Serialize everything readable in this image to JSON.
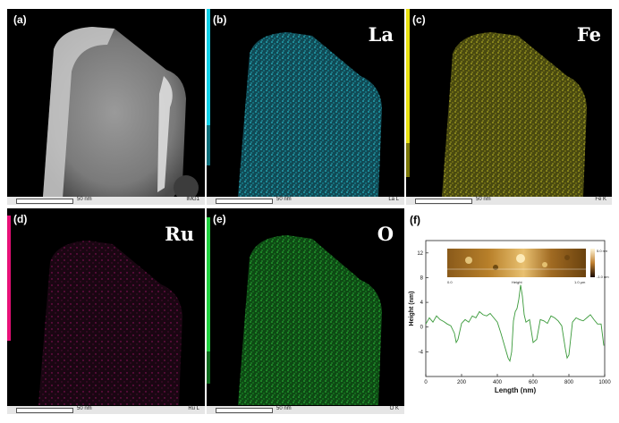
{
  "panels": {
    "a": {
      "label": "(a)",
      "scale": "50 nm",
      "tag": "IMG1"
    },
    "b": {
      "label": "(b)",
      "element": "La",
      "scale": "50 nm",
      "tag": "La L",
      "color": "#19c8d8",
      "strip_color": "#10d0e8"
    },
    "c": {
      "label": "(c)",
      "element": "Fe",
      "scale": "50 nm",
      "tag": "Fe K",
      "color": "#b8b422",
      "strip_color": "#e8e010"
    },
    "d": {
      "label": "(d)",
      "element": "Ru",
      "scale": "50 nm",
      "tag": "Ru L",
      "color": "#a01268",
      "strip_color": "#e81078"
    },
    "e": {
      "label": "(e)",
      "element": "O",
      "scale": "50 nm",
      "tag": "O K",
      "color": "#22b030",
      "strip_color": "#20d040"
    },
    "f": {
      "label": "(f)",
      "inset_left": "0.0",
      "inset_center": "Height",
      "inset_right": "1.0 µm",
      "inset_scale_top": "5.0 nm",
      "inset_scale_bottom": "-1.0 nm"
    }
  },
  "chart_data": {
    "type": "line",
    "xlabel": "Length (nm)",
    "ylabel": "Height (nm)",
    "xlim": [
      0,
      1000
    ],
    "ylim": [
      -8,
      14
    ],
    "xticks": [
      0,
      200,
      400,
      600,
      800,
      1000
    ],
    "yticks": [
      -4,
      0,
      4,
      8,
      12
    ],
    "line_color": "#3a9a3a",
    "series": [
      {
        "x": [
          0,
          20,
          40,
          60,
          80,
          100,
          120,
          140,
          160,
          170,
          180,
          200,
          220,
          240,
          260,
          280,
          300,
          320,
          340,
          360,
          380,
          400,
          420,
          440,
          460,
          470,
          480,
          490,
          500,
          510,
          520,
          530,
          540,
          550,
          560,
          580,
          600,
          620,
          640,
          660,
          680,
          700,
          720,
          740,
          760,
          780,
          790,
          800,
          820,
          840,
          860,
          880,
          900,
          920,
          940,
          960,
          980,
          995
        ],
        "y": [
          0.5,
          1.5,
          0.8,
          1.8,
          1.2,
          0.9,
          0.5,
          0.2,
          -1.0,
          -2.5,
          -2.0,
          0.6,
          1.2,
          0.8,
          1.8,
          1.5,
          2.5,
          2.0,
          1.8,
          2.2,
          1.5,
          0.8,
          -1.0,
          -3.0,
          -5.0,
          -5.5,
          -4.0,
          1.0,
          2.5,
          3.0,
          4.5,
          6.8,
          5.0,
          2.0,
          0.8,
          1.2,
          -2.5,
          -2.0,
          1.2,
          1.0,
          0.6,
          1.8,
          1.5,
          1.0,
          0.2,
          -3.5,
          -5.0,
          -4.5,
          0.8,
          1.5,
          1.2,
          1.0,
          1.5,
          2.0,
          1.2,
          0.5,
          0.5,
          -3.0
        ]
      }
    ]
  }
}
